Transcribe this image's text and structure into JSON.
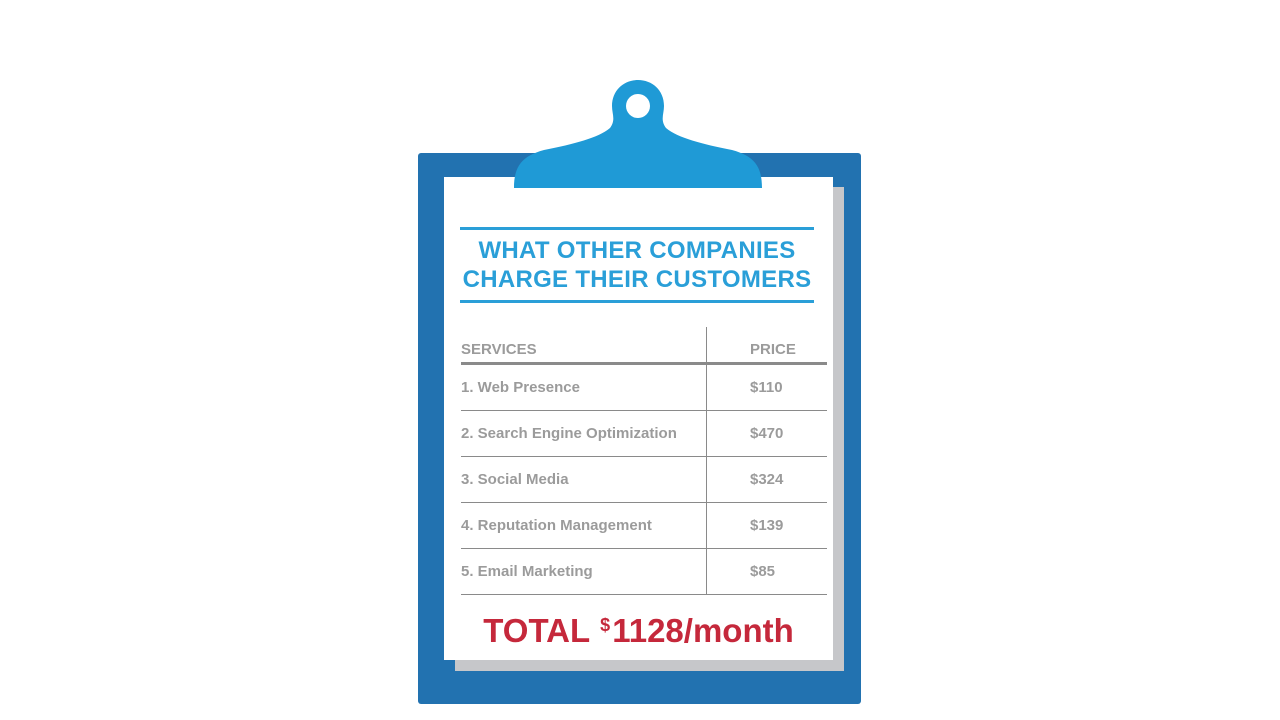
{
  "title": {
    "line1": "WHAT OTHER COMPANIES",
    "line2": "CHARGE THEIR CUSTOMERS"
  },
  "table": {
    "headers": {
      "service": "SERVICES",
      "price": "PRICE"
    },
    "rows": [
      {
        "service": "1. Web Presence",
        "price": "$110"
      },
      {
        "service": "2. Search Engine Optimization",
        "price": "$470"
      },
      {
        "service": "3. Social Media",
        "price": "$324"
      },
      {
        "service": "4. Reputation Management",
        "price": "$139"
      },
      {
        "service": "5. Email Marketing",
        "price": "$85"
      }
    ]
  },
  "total": {
    "label": "TOTAL",
    "currency": "$",
    "amount": "1128/month"
  },
  "colors": {
    "board": "#2272b0",
    "clip": "#1f9ad6",
    "title": "#2a9fd8",
    "text": "#9b9b9b",
    "total": "#c5283b"
  }
}
